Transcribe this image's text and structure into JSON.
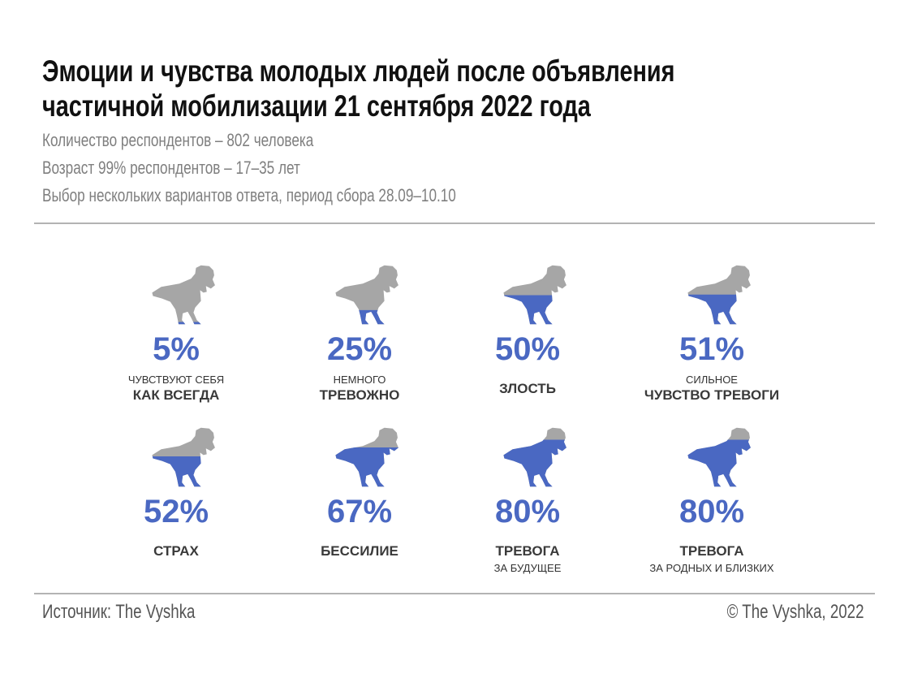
{
  "title_lines": [
    "Эмоции и чувства молодых людей после объявления",
    "частичной мобилизации 21 сентября 2022 года"
  ],
  "subtitle_lines": [
    "Количество респондентов – 802 человека",
    "Возраст 99% респондентов – 17–35 лет",
    "Выбор нескольких вариантов ответа, период сбора 28.09–10.10"
  ],
  "colors": {
    "fill": "#4a68c2",
    "empty": "#a6a6a6",
    "percent": "#4a68c2"
  },
  "icon": "t-rex-icon",
  "chart_data": {
    "type": "pictogram",
    "unit": "%",
    "items": [
      {
        "value": 5,
        "label": "5%",
        "small_top": "чувствуют себя",
        "big": "как всегда",
        "small_bottom": ""
      },
      {
        "value": 25,
        "label": "25%",
        "small_top": "немного",
        "big": "тревожно",
        "small_bottom": ""
      },
      {
        "value": 50,
        "label": "50%",
        "small_top": "",
        "big": "злость",
        "small_bottom": ""
      },
      {
        "value": 51,
        "label": "51%",
        "small_top": "сильное",
        "big": "чувство тревоги",
        "small_bottom": ""
      },
      {
        "value": 52,
        "label": "52%",
        "small_top": "",
        "big": "страх",
        "small_bottom": ""
      },
      {
        "value": 67,
        "label": "67%",
        "small_top": "",
        "big": "бессилие",
        "small_bottom": ""
      },
      {
        "value": 80,
        "label": "80%",
        "small_top": "",
        "big": "тревога",
        "small_bottom": "за будущее"
      },
      {
        "value": 80,
        "label": "80%",
        "small_top": "",
        "big": "тревога",
        "small_bottom": "за родных и близких"
      }
    ]
  },
  "footer": {
    "source": "Источник: The Vyshka",
    "copyright": "© The Vyshka, 2022"
  }
}
